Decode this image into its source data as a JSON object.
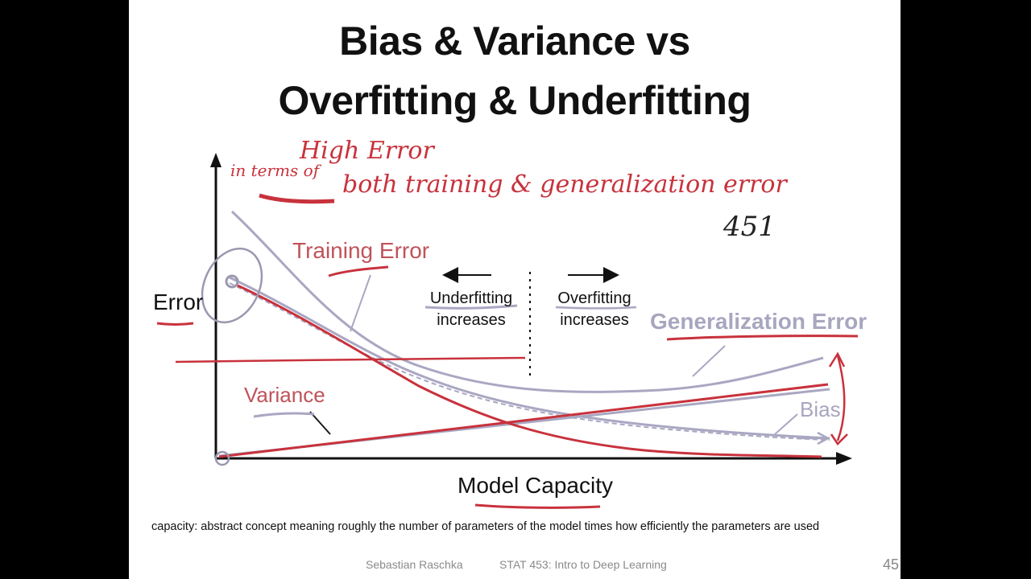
{
  "slide": {
    "title_line1": "Bias & Variance vs",
    "title_line2": "Overfitting & Underfitting",
    "footnote": "capacity: abstract concept meaning roughly the number of parameters of the model times how efficiently the parameters are used",
    "footer_author": "Sebastian Raschka",
    "footer_course": "STAT 453: Intro to Deep Learning",
    "page_number": "45"
  },
  "diagram": {
    "y_axis_label": "Error",
    "x_axis_label": "Model Capacity",
    "training_error_label": "Training Error",
    "generalization_error_label": "Generalization Error",
    "variance_label": "Variance",
    "bias_label": "Bias",
    "underfitting_line1": "Underfitting",
    "underfitting_line2": "increases",
    "overfitting_line1": "Overfitting",
    "overfitting_line2": "increases"
  },
  "annotations": {
    "line1": "High Error",
    "line2": "in terms of",
    "line3": "both training & generalization error",
    "note": "451"
  },
  "colors": {
    "red": "#c8323c",
    "red_text": "#c0535a",
    "gray": "#a9a7c2",
    "dark": "#111111"
  }
}
